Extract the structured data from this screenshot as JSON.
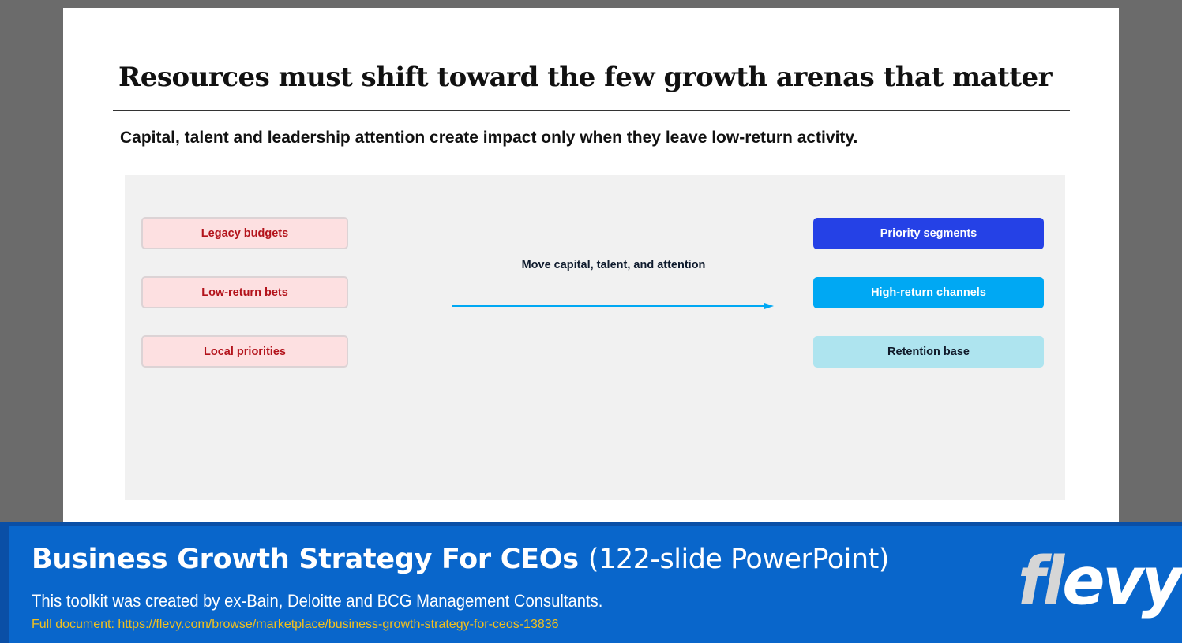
{
  "slide": {
    "title": "Resources must shift toward the few growth arenas that matter",
    "subtitle": "Capital, talent and leadership attention create impact only when they leave low-return activity.",
    "diagram": {
      "sources": [
        "Legacy budgets",
        "Low-return bets",
        "Local priorities"
      ],
      "arrow_label": "Move capital, talent, and attention",
      "destinations": [
        "Priority segments",
        "High-return channels",
        "Retention base"
      ],
      "colors": {
        "source_fill": "#fde0e1",
        "source_text": "#b3131b",
        "destination_fills": [
          "#2541e6",
          "#00a8f3",
          "#aee4ef"
        ],
        "arrow": "#00a8f3"
      }
    }
  },
  "banner": {
    "title_main": "Business Growth Strategy For CEOs",
    "title_sub": "(122-slide PowerPoint)",
    "description": "This toolkit was created by ex-Bain, Deloitte and BCG Management Consultants.",
    "link": "Full document: https://flevy.com/browse/marketplace/business-growth-strategy-for-ceos-13836",
    "logo_part1": "fl",
    "logo_part2": "evy"
  }
}
